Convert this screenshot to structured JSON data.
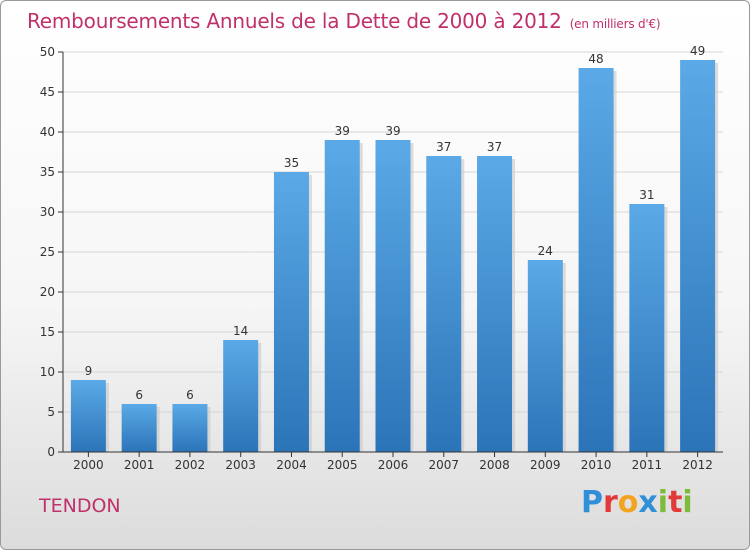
{
  "header": {
    "title": "Remboursements Annuels de la Dette de 2000 à 2012",
    "unit": "(en milliers d'€)"
  },
  "footer": {
    "commune": "TENDON",
    "logo_text": "Proxiti",
    "logo_colors": [
      "#2f8fd8",
      "#e23a3a",
      "#f2a421",
      "#2f8fd8",
      "#7dbb3a",
      "#e23a3a",
      "#7dbb3a"
    ]
  },
  "colors": {
    "bar": "#3f8fd3",
    "bar_light": "#5ba9e6",
    "bar_dark": "#2b74b8",
    "title": "#c0306a",
    "grid": "#d6d6d6"
  },
  "chart_data": {
    "type": "bar",
    "title": "Remboursements Annuels de la Dette de 2000 à 2012",
    "categories": [
      "2000",
      "2001",
      "2002",
      "2003",
      "2004",
      "2005",
      "2006",
      "2007",
      "2008",
      "2009",
      "2010",
      "2011",
      "2012"
    ],
    "values": [
      9,
      6,
      6,
      14,
      35,
      39,
      39,
      37,
      37,
      24,
      48,
      31,
      49
    ],
    "ylim": [
      0,
      50
    ],
    "yticks": [
      0,
      5,
      10,
      15,
      20,
      25,
      30,
      35,
      40,
      45,
      50
    ],
    "grid": true,
    "data_labels": true
  }
}
